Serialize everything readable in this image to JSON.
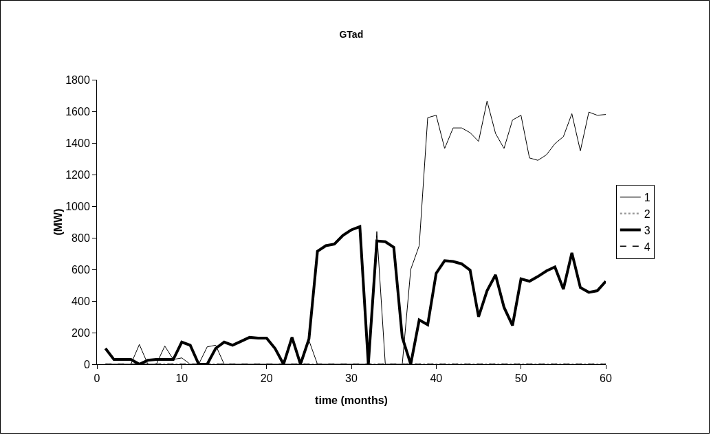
{
  "chart_data": {
    "type": "line",
    "title": "GTad",
    "xlabel": "time (months)",
    "ylabel": "(MW)",
    "x": [
      1,
      2,
      3,
      4,
      5,
      6,
      7,
      8,
      9,
      10,
      11,
      12,
      13,
      14,
      15,
      16,
      17,
      18,
      19,
      20,
      21,
      22,
      23,
      24,
      25,
      26,
      27,
      28,
      29,
      30,
      31,
      32,
      33,
      34,
      35,
      36,
      37,
      38,
      39,
      40,
      41,
      42,
      43,
      44,
      45,
      46,
      47,
      48,
      49,
      50,
      51,
      52,
      53,
      54,
      55,
      56,
      57,
      58,
      59,
      60
    ],
    "series": [
      {
        "name": "1",
        "color": "#000000",
        "line_style": "solid",
        "values": [
          0,
          0,
          0,
          0,
          125,
          0,
          0,
          115,
          30,
          40,
          0,
          0,
          110,
          120,
          0,
          0,
          0,
          0,
          0,
          0,
          0,
          0,
          0,
          0,
          150,
          0,
          0,
          0,
          0,
          0,
          0,
          0,
          840,
          0,
          0,
          0,
          600,
          750,
          1560,
          1575,
          1365,
          1495,
          1495,
          1465,
          1410,
          1665,
          1460,
          1365,
          1545,
          1575,
          1305,
          1290,
          1325,
          1395,
          1440,
          1585,
          1350,
          1595,
          1575,
          1580
        ]
      },
      {
        "name": "2",
        "color": "#999999",
        "line_style": "dotted",
        "values": [
          0,
          0,
          0,
          0,
          0,
          0,
          0,
          0,
          0,
          0,
          0,
          0,
          0,
          0,
          0,
          0,
          0,
          0,
          0,
          0,
          0,
          0,
          0,
          0,
          0,
          0,
          0,
          0,
          0,
          0,
          0,
          0,
          0,
          0,
          0,
          0,
          0,
          0,
          0,
          0,
          0,
          0,
          0,
          0,
          0,
          0,
          0,
          0,
          0,
          0,
          0,
          0,
          0,
          0,
          0,
          0,
          0,
          0,
          0,
          0
        ]
      },
      {
        "name": "3",
        "color": "#000000",
        "line_style": "solid",
        "values": [
          100,
          30,
          30,
          30,
          0,
          25,
          30,
          30,
          30,
          140,
          120,
          0,
          0,
          100,
          140,
          120,
          145,
          170,
          165,
          165,
          100,
          0,
          170,
          0,
          160,
          715,
          750,
          760,
          815,
          850,
          870,
          0,
          780,
          775,
          740,
          170,
          0,
          280,
          250,
          575,
          655,
          650,
          635,
          595,
          300,
          465,
          565,
          360,
          245,
          540,
          525,
          555,
          590,
          615,
          475,
          705,
          485,
          455,
          465,
          525
        ]
      },
      {
        "name": "4",
        "color": "#000000",
        "line_style": "dashed",
        "values": [
          0,
          0,
          0,
          0,
          0,
          0,
          0,
          0,
          0,
          0,
          0,
          0,
          0,
          0,
          0,
          0,
          0,
          0,
          0,
          0,
          0,
          0,
          0,
          0,
          0,
          0,
          0,
          0,
          0,
          0,
          0,
          0,
          0,
          0,
          0,
          0,
          0,
          0,
          0,
          0,
          0,
          0,
          0,
          0,
          0,
          0,
          0,
          0,
          0,
          0,
          0,
          0,
          0,
          0,
          0,
          0,
          0,
          0,
          0,
          0
        ]
      }
    ],
    "xlim": [
      0,
      60
    ],
    "xticks": [
      0,
      10,
      20,
      30,
      40,
      50,
      60
    ],
    "ylim": [
      0,
      1800
    ],
    "yticks": [
      0,
      200,
      400,
      600,
      800,
      1000,
      1200,
      1400,
      1600,
      1800
    ],
    "grid": false,
    "legend": "right",
    "marker": "none"
  }
}
